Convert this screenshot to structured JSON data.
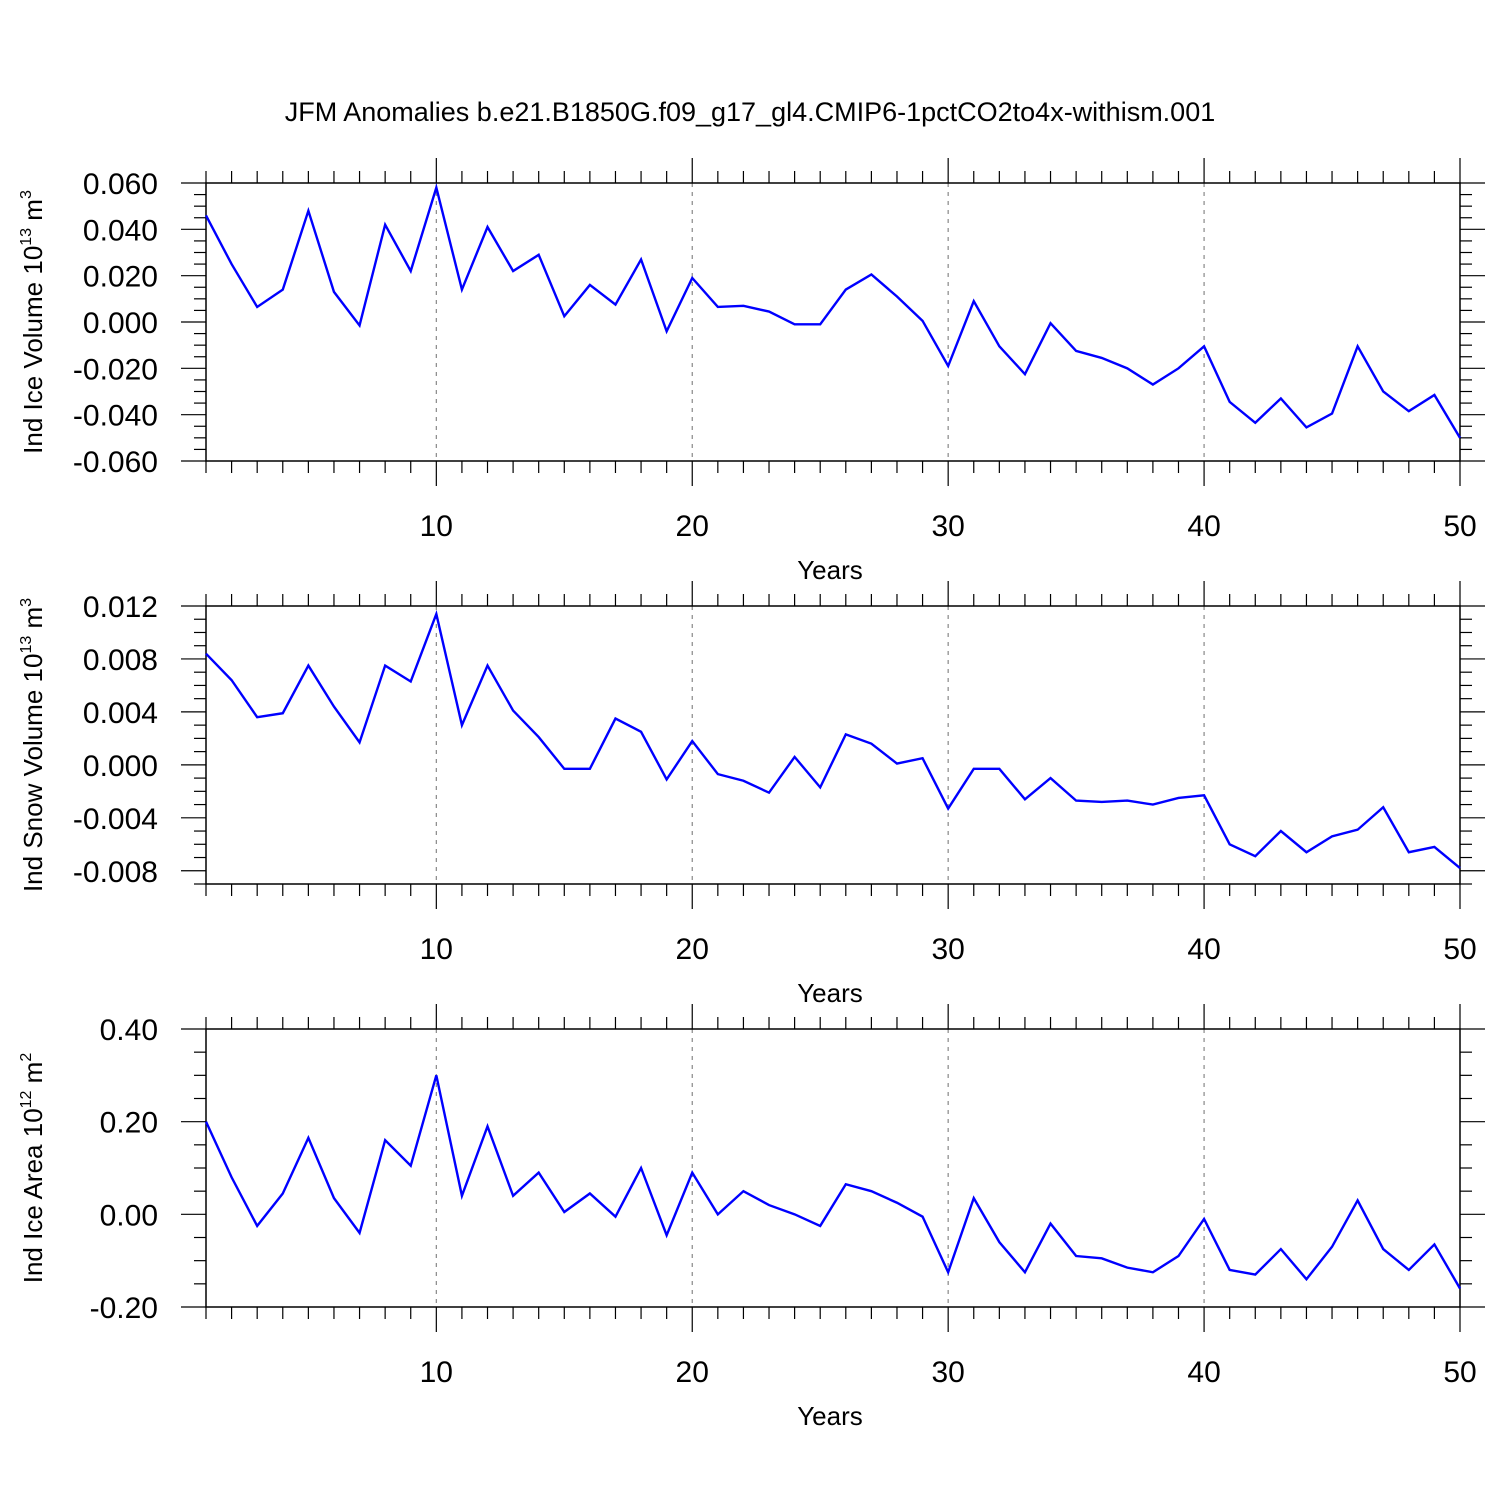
{
  "title": "JFM Anomalies b.e21.B1850G.f09_g17_gl4.CMIP6-1pctCO2to4x-withism.001",
  "colors": {
    "line": "#0000ff",
    "axis": "#000000",
    "grid": "#888888"
  },
  "chart_data": [
    {
      "type": "line",
      "ylabel_prefix": "Ind Ice Volume 10",
      "ylabel_exp": "13",
      "ylabel_unit": " m",
      "ylabel_unit_exp": "3",
      "xlabel": "Years",
      "xlim": [
        1,
        50
      ],
      "ylim": [
        -0.06,
        0.06
      ],
      "x_major_ticks": [
        10,
        20,
        30,
        40,
        50
      ],
      "x_minor_step": 1,
      "y_major_ticks": [
        0.06,
        0.04,
        0.02,
        0.0,
        -0.02,
        -0.04,
        -0.06
      ],
      "y_tick_labels": [
        "0.060",
        "0.040",
        "0.020",
        "0.000",
        "-0.020",
        "-0.040",
        "-0.060"
      ],
      "y_minor_step": 0.005,
      "grid_x": [
        10,
        20,
        30,
        40
      ],
      "x": [
        1,
        2,
        3,
        4,
        5,
        6,
        7,
        8,
        9,
        10,
        11,
        12,
        13,
        14,
        15,
        16,
        17,
        18,
        19,
        20,
        21,
        22,
        23,
        24,
        25,
        26,
        27,
        28,
        29,
        30,
        31,
        32,
        33,
        34,
        35,
        36,
        37,
        38,
        39,
        40,
        41,
        42,
        43,
        44,
        45,
        46,
        47,
        48,
        49,
        50
      ],
      "y": [
        0.046,
        0.025,
        0.0065,
        0.014,
        0.048,
        0.013,
        -0.0015,
        0.042,
        0.022,
        0.058,
        0.014,
        0.041,
        0.022,
        0.029,
        0.0025,
        0.016,
        0.0075,
        0.027,
        -0.004,
        0.019,
        0.0065,
        0.007,
        0.0045,
        -0.001,
        -0.001,
        0.014,
        0.0205,
        0.011,
        0.0005,
        -0.019,
        0.009,
        -0.0105,
        -0.0225,
        -0.0005,
        -0.0125,
        -0.0155,
        -0.02,
        -0.027,
        -0.02,
        -0.0105,
        -0.0345,
        -0.0435,
        -0.033,
        -0.0455,
        -0.0395,
        -0.0105,
        -0.03,
        -0.0385,
        -0.0315,
        -0.05
      ]
    },
    {
      "type": "line",
      "ylabel_prefix": "Ind Snow Volume 10",
      "ylabel_exp": "13",
      "ylabel_unit": " m",
      "ylabel_unit_exp": "3",
      "xlabel": "Years",
      "xlim": [
        1,
        50
      ],
      "ylim": [
        -0.009,
        0.012
      ],
      "x_major_ticks": [
        10,
        20,
        30,
        40,
        50
      ],
      "x_minor_step": 1,
      "y_major_ticks": [
        0.012,
        0.008,
        0.004,
        0.0,
        -0.004,
        -0.008
      ],
      "y_tick_labels": [
        "0.012",
        "0.008",
        "0.004",
        "0.000",
        "-0.004",
        "-0.008"
      ],
      "y_minor_step": 0.001,
      "grid_x": [
        10,
        20,
        30,
        40
      ],
      "x": [
        1,
        2,
        3,
        4,
        5,
        6,
        7,
        8,
        9,
        10,
        11,
        12,
        13,
        14,
        15,
        16,
        17,
        18,
        19,
        20,
        21,
        22,
        23,
        24,
        25,
        26,
        27,
        28,
        29,
        30,
        31,
        32,
        33,
        34,
        35,
        36,
        37,
        38,
        39,
        40,
        41,
        42,
        43,
        44,
        45,
        46,
        47,
        48,
        49,
        50
      ],
      "y": [
        0.0084,
        0.0064,
        0.0036,
        0.0039,
        0.0075,
        0.0044,
        0.0017,
        0.0075,
        0.0063,
        0.0114,
        0.003,
        0.0075,
        0.0041,
        0.0021,
        -0.0003,
        -0.0003,
        0.0035,
        0.0025,
        -0.0011,
        0.0018,
        -0.0007,
        -0.0012,
        -0.0021,
        0.0006,
        -0.0017,
        0.0023,
        0.0016,
        0.0001,
        0.0005,
        -0.0033,
        -0.0003,
        -0.0003,
        -0.0026,
        -0.001,
        -0.0027,
        -0.0028,
        -0.0027,
        -0.003,
        -0.0025,
        -0.0023,
        -0.006,
        -0.0069,
        -0.005,
        -0.0066,
        -0.0054,
        -0.0049,
        -0.0032,
        -0.0066,
        -0.0062,
        -0.0078
      ]
    },
    {
      "type": "line",
      "ylabel_prefix": "Ind Ice Area 10",
      "ylabel_exp": "12",
      "ylabel_unit": " m",
      "ylabel_unit_exp": "2",
      "xlabel": "Years",
      "xlim": [
        1,
        50
      ],
      "ylim": [
        -0.2,
        0.4
      ],
      "x_major_ticks": [
        10,
        20,
        30,
        40,
        50
      ],
      "x_minor_step": 1,
      "y_major_ticks": [
        0.4,
        0.2,
        0.0,
        -0.2
      ],
      "y_tick_labels": [
        "0.40",
        "0.20",
        "0.00",
        "-0.20"
      ],
      "y_minor_step": 0.05,
      "grid_x": [
        10,
        20,
        30,
        40
      ],
      "x": [
        1,
        2,
        3,
        4,
        5,
        6,
        7,
        8,
        9,
        10,
        11,
        12,
        13,
        14,
        15,
        16,
        17,
        18,
        19,
        20,
        21,
        22,
        23,
        24,
        25,
        26,
        27,
        28,
        29,
        30,
        31,
        32,
        33,
        34,
        35,
        36,
        37,
        38,
        39,
        40,
        41,
        42,
        43,
        44,
        45,
        46,
        47,
        48,
        49,
        50
      ],
      "y": [
        0.2,
        0.08,
        -0.025,
        0.045,
        0.165,
        0.035,
        -0.04,
        0.16,
        0.105,
        0.3,
        0.04,
        0.19,
        0.04,
        0.09,
        0.005,
        0.045,
        -0.005,
        0.1,
        -0.045,
        0.09,
        0.0,
        0.05,
        0.02,
        0.0,
        -0.025,
        0.065,
        0.05,
        0.025,
        -0.005,
        -0.125,
        0.035,
        -0.06,
        -0.125,
        -0.02,
        -0.09,
        -0.095,
        -0.115,
        -0.125,
        -0.09,
        -0.01,
        -0.12,
        -0.13,
        -0.075,
        -0.14,
        -0.07,
        0.03,
        -0.075,
        -0.12,
        -0.065,
        -0.16
      ]
    }
  ]
}
